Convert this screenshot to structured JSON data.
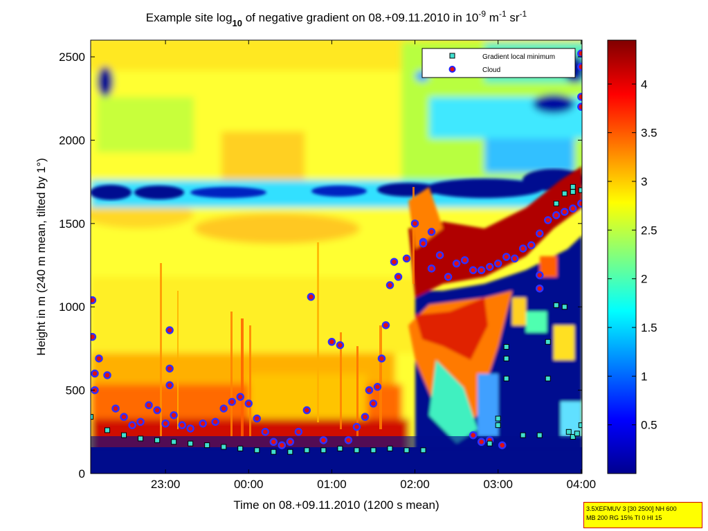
{
  "chart_data": {
    "type": "heatmap",
    "title": {
      "prefix": "Example site log",
      "sub": "10",
      "mid": " of negative gradient on 08.+09.11.2010 in 10",
      "sup1": "-9",
      "mid2": " m",
      "sup2": "-1",
      "mid3": " sr",
      "sup3": "-1"
    },
    "xlabel": "Time on 08.+09.11.2010 (1200 s mean)",
    "ylabel": "Height in m (240 m mean, tilted by 1°)",
    "x_ticks": [
      "23:00",
      "00:00",
      "01:00",
      "02:00",
      "03:00",
      "04:00"
    ],
    "x_tick_hours": [
      23,
      24,
      25,
      26,
      27,
      28
    ],
    "xlim_hours": [
      22.1,
      28.01
    ],
    "y_ticks": [
      0,
      500,
      1000,
      1500,
      2000,
      2500
    ],
    "ylim": [
      0,
      2600
    ],
    "colorbar": {
      "ticks": [
        "0.5",
        "1",
        "1.5",
        "2",
        "2.5",
        "3",
        "3.5",
        "4"
      ],
      "tick_values": [
        0.5,
        1,
        1.5,
        2,
        2.5,
        3,
        3.5,
        4
      ],
      "range": [
        0,
        4.45
      ],
      "colormap": "jet"
    },
    "legend": {
      "placement": "top-right",
      "entries": [
        {
          "label": "Gradient local minimum",
          "marker": "square",
          "color": "#40e0d0"
        },
        {
          "label": "Cloud",
          "marker": "circle",
          "color": "#e01010"
        }
      ]
    },
    "series": [
      {
        "name": "Cloud",
        "marker": "circle",
        "points": [
          [
            22.12,
            1040
          ],
          [
            22.12,
            820
          ],
          [
            22.15,
            600
          ],
          [
            22.15,
            500
          ],
          [
            22.2,
            690
          ],
          [
            22.3,
            590
          ],
          [
            22.4,
            390
          ],
          [
            22.5,
            340
          ],
          [
            22.6,
            290
          ],
          [
            22.7,
            310
          ],
          [
            22.8,
            410
          ],
          [
            22.9,
            380
          ],
          [
            23.0,
            300
          ],
          [
            23.05,
            860
          ],
          [
            23.05,
            630
          ],
          [
            23.05,
            530
          ],
          [
            23.1,
            350
          ],
          [
            23.2,
            290
          ],
          [
            23.3,
            270
          ],
          [
            23.45,
            300
          ],
          [
            23.6,
            310
          ],
          [
            23.7,
            390
          ],
          [
            23.8,
            430
          ],
          [
            23.9,
            460
          ],
          [
            24.0,
            420
          ],
          [
            24.1,
            330
          ],
          [
            24.2,
            250
          ],
          [
            24.3,
            190
          ],
          [
            24.4,
            170
          ],
          [
            24.5,
            190
          ],
          [
            24.6,
            250
          ],
          [
            24.7,
            380
          ],
          [
            24.75,
            1060
          ],
          [
            24.9,
            200
          ],
          [
            25.0,
            790
          ],
          [
            25.1,
            770
          ],
          [
            25.2,
            200
          ],
          [
            25.3,
            280
          ],
          [
            25.4,
            340
          ],
          [
            25.45,
            500
          ],
          [
            25.5,
            420
          ],
          [
            25.55,
            520
          ],
          [
            25.6,
            690
          ],
          [
            25.65,
            890
          ],
          [
            25.7,
            1130
          ],
          [
            25.75,
            1270
          ],
          [
            25.8,
            1180
          ],
          [
            25.9,
            1290
          ],
          [
            26.0,
            1500
          ],
          [
            26.1,
            1390
          ],
          [
            26.2,
            1230
          ],
          [
            26.3,
            1310
          ],
          [
            26.4,
            1180
          ],
          [
            26.5,
            1260
          ],
          [
            26.6,
            1280
          ],
          [
            26.7,
            1220
          ],
          [
            26.8,
            1220
          ],
          [
            26.9,
            1240
          ],
          [
            27.0,
            1260
          ],
          [
            27.1,
            1300
          ],
          [
            27.2,
            1290
          ],
          [
            27.3,
            1350
          ],
          [
            27.4,
            1370
          ],
          [
            27.5,
            1440
          ],
          [
            27.6,
            1520
          ],
          [
            27.7,
            1550
          ],
          [
            27.8,
            1570
          ],
          [
            27.9,
            1590
          ],
          [
            28.0,
            1620
          ],
          [
            28.0,
            2520
          ],
          [
            28.0,
            2440
          ],
          [
            28.0,
            2260
          ],
          [
            28.0,
            2200
          ],
          [
            26.2,
            1450
          ],
          [
            26.1,
            1380
          ],
          [
            27.5,
            1190
          ],
          [
            27.5,
            1110
          ],
          [
            26.7,
            230
          ],
          [
            26.8,
            190
          ],
          [
            26.9,
            200
          ],
          [
            27.05,
            170
          ]
        ]
      },
      {
        "name": "Gradient local minimum",
        "marker": "square",
        "points": [
          [
            22.1,
            340
          ],
          [
            22.3,
            260
          ],
          [
            22.5,
            230
          ],
          [
            22.7,
            210
          ],
          [
            22.9,
            200
          ],
          [
            23.1,
            190
          ],
          [
            23.3,
            180
          ],
          [
            23.5,
            170
          ],
          [
            23.7,
            160
          ],
          [
            23.9,
            150
          ],
          [
            24.1,
            140
          ],
          [
            24.3,
            130
          ],
          [
            24.5,
            130
          ],
          [
            24.7,
            140
          ],
          [
            24.9,
            140
          ],
          [
            25.1,
            150
          ],
          [
            25.3,
            140
          ],
          [
            25.5,
            140
          ],
          [
            25.7,
            150
          ],
          [
            25.9,
            140
          ],
          [
            26.1,
            140
          ],
          [
            26.9,
            180
          ],
          [
            27.0,
            330
          ],
          [
            27.0,
            290
          ],
          [
            27.1,
            570
          ],
          [
            27.1,
            690
          ],
          [
            27.1,
            760
          ],
          [
            27.3,
            230
          ],
          [
            27.5,
            230
          ],
          [
            27.6,
            570
          ],
          [
            27.6,
            790
          ],
          [
            27.7,
            1010
          ],
          [
            27.8,
            1000
          ],
          [
            27.7,
            1620
          ],
          [
            27.8,
            1680
          ],
          [
            27.9,
            1690
          ],
          [
            28.0,
            1700
          ],
          [
            27.9,
            1720
          ],
          [
            27.85,
            250
          ],
          [
            27.9,
            220
          ],
          [
            27.95,
            240
          ],
          [
            28.0,
            290
          ]
        ]
      }
    ]
  },
  "info_box": {
    "line1": "3.5XEFMUV 3 [30 2500] NH 600",
    "line2": "MB 200 RG 15% TI 0 HI 15"
  }
}
